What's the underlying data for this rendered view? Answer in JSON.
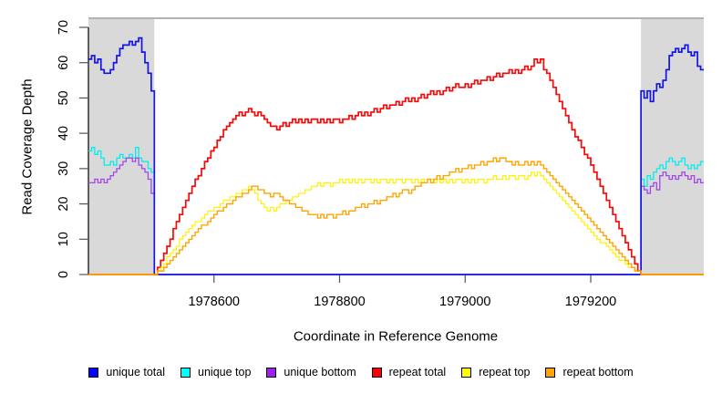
{
  "chart_data": {
    "type": "line",
    "title": "",
    "xlabel": "Coordinate in Reference Genome",
    "ylabel": "Read Coverage Depth",
    "xlim": [
      1978400,
      1979380
    ],
    "ylim": [
      0,
      72
    ],
    "x_ticks": [
      1978600,
      1978800,
      1979000,
      1979200
    ],
    "y_ticks": [
      0,
      10,
      20,
      30,
      40,
      50,
      60,
      70
    ],
    "grid": false,
    "interpolation": "step-after",
    "shaded_regions": {
      "color": "#D9D9D9",
      "regions": [
        [
          1978400,
          1978505
        ],
        [
          1979280,
          1979380
        ]
      ]
    },
    "series": [
      {
        "name": "unique top",
        "color": "#00EEEE",
        "width": 1.3,
        "segments": [
          {
            "x0": 1978400,
            "dx": 5,
            "values": [
              35,
              36,
              34,
              35,
              33,
              31,
              31,
              32,
              31,
              33,
              34,
              33,
              33,
              34,
              33,
              36,
              33,
              32,
              32,
              30,
              29
            ]
          },
          {
            "x0": 1979280,
            "dx": 5,
            "values": [
              27,
              25,
              28,
              27,
              29,
              30,
              31,
              30,
              32,
              33,
              32,
              31,
              32,
              33,
              31,
              30,
              31,
              30,
              31,
              32
            ]
          }
        ]
      },
      {
        "name": "unique bottom",
        "color": "#A347E8",
        "width": 1.3,
        "segments": [
          {
            "x0": 1978400,
            "dx": 5,
            "values": [
              26,
              26,
              27,
              26,
              27,
              26,
              27,
              28,
              29,
              30,
              31,
              32,
              33,
              33,
              32,
              33,
              31,
              30,
              29,
              27,
              23
            ]
          },
          {
            "x0": 1979280,
            "dx": 5,
            "values": [
              25,
              24,
              23,
              25,
              26,
              24,
              28,
              29,
              28,
              27,
              28,
              27,
              28,
              29,
              28,
              27,
              28,
              26,
              27,
              26
            ]
          }
        ]
      },
      {
        "name": "unique total",
        "color": "#1414E6",
        "width": 1.7,
        "segments": [
          {
            "x0": 1978400,
            "dx": 5,
            "values": [
              61,
              62,
              60,
              61,
              58,
              57,
              57,
              58,
              60,
              62,
              64,
              65,
              65,
              66,
              65,
              66,
              67,
              63,
              60,
              57,
              52
            ]
          },
          {
            "x0": 1979280,
            "dx": 5,
            "values": [
              52,
              50,
              52,
              49,
              52,
              54,
              53,
              55,
              58,
              62,
              63,
              64,
              63,
              64,
              65,
              63,
              62,
              63,
              59,
              58
            ]
          }
        ]
      },
      {
        "name": "repeat total",
        "color": "#F50A0A",
        "width": 1.7,
        "segments": [
          {
            "x0": 1978505,
            "dx": 5,
            "values": [
              0,
              2,
              4,
              6,
              8,
              10,
              13,
              15,
              17,
              19,
              21,
              23,
              25,
              27,
              28,
              30,
              32,
              33,
              35,
              36,
              38,
              39,
              41,
              42,
              43,
              44,
              45,
              46,
              45,
              46,
              47,
              46,
              45,
              46,
              45,
              44,
              43,
              42,
              42,
              41,
              42,
              43,
              42,
              43,
              44,
              43,
              44,
              43,
              44,
              43,
              44,
              44,
              43,
              44,
              43,
              44,
              43,
              44,
              44,
              43,
              44,
              44,
              45,
              44,
              45,
              46,
              45,
              46,
              45,
              46,
              47,
              46,
              47,
              48,
              47,
              48,
              48,
              49,
              48,
              49,
              50,
              49,
              50,
              49,
              50,
              51,
              50,
              51,
              52,
              51,
              52,
              51,
              52,
              53,
              52,
              53,
              54,
              53,
              53,
              54,
              53,
              54,
              55,
              54,
              55,
              55,
              56,
              55,
              56,
              57,
              56,
              57,
              57,
              58,
              57,
              58,
              57,
              58,
              59,
              58,
              59,
              61,
              60,
              61,
              58,
              57,
              55,
              53,
              51,
              49,
              47,
              45,
              43,
              41,
              39,
              38,
              36,
              34,
              33,
              31,
              29,
              27,
              25,
              23,
              21,
              19,
              17,
              15,
              13,
              11,
              9,
              7,
              5,
              3,
              1
            ]
          }
        ]
      },
      {
        "name": "repeat top",
        "color": "#FFF200",
        "width": 1.2,
        "segments": [
          {
            "x0": 1978505,
            "dx": 5,
            "values": [
              0,
              1,
              2,
              3,
              5,
              6,
              7,
              8,
              10,
              11,
              12,
              13,
              14,
              15,
              15,
              16,
              17,
              18,
              18,
              19,
              19,
              20,
              21,
              21,
              22,
              22,
              23,
              23,
              24,
              24,
              25,
              24,
              23,
              21,
              20,
              19,
              18,
              19,
              18,
              19,
              20,
              20,
              21,
              21,
              22,
              22,
              23,
              23,
              24,
              24,
              25,
              25,
              26,
              25,
              26,
              26,
              25,
              26,
              26,
              27,
              26,
              27,
              26,
              27,
              26,
              27,
              26,
              27,
              27,
              26,
              27,
              26,
              27,
              27,
              26,
              27,
              26,
              27,
              27,
              26,
              27,
              27,
              26,
              27,
              26,
              27,
              26,
              27,
              27,
              26,
              27,
              26,
              27,
              26,
              27,
              26,
              27,
              27,
              26,
              27,
              26,
              27,
              26,
              27,
              27,
              26,
              27,
              27,
              28,
              27,
              27,
              28,
              27,
              28,
              28,
              27,
              28,
              28,
              27,
              28,
              29,
              28,
              29,
              28,
              27,
              26,
              25,
              24,
              23,
              22,
              21,
              20,
              19,
              18,
              17,
              16,
              15,
              14,
              13,
              12,
              11,
              10,
              9,
              9,
              8,
              7,
              6,
              5,
              4,
              4,
              3,
              2,
              2,
              1,
              1
            ]
          }
        ]
      },
      {
        "name": "repeat bottom",
        "color": "#FFA500",
        "width": 1.4,
        "segments": [
          {
            "x0": 1978505,
            "dx": 5,
            "values": [
              0,
              1,
              1,
              2,
              3,
              4,
              5,
              6,
              7,
              8,
              9,
              10,
              11,
              12,
              13,
              14,
              14,
              15,
              16,
              17,
              18,
              18,
              19,
              20,
              20,
              21,
              22,
              22,
              23,
              23,
              24,
              25,
              25,
              24,
              24,
              23,
              23,
              22,
              23,
              23,
              22,
              21,
              21,
              20,
              20,
              19,
              19,
              18,
              18,
              17,
              17,
              17,
              16,
              17,
              16,
              17,
              17,
              16,
              17,
              17,
              18,
              17,
              18,
              18,
              19,
              19,
              20,
              19,
              20,
              20,
              21,
              20,
              21,
              21,
              22,
              22,
              23,
              22,
              23,
              24,
              24,
              23,
              24,
              25,
              25,
              26,
              26,
              27,
              26,
              27,
              28,
              27,
              28,
              28,
              29,
              29,
              30,
              29,
              30,
              30,
              31,
              30,
              31,
              31,
              32,
              31,
              32,
              32,
              33,
              32,
              33,
              33,
              32,
              32,
              31,
              32,
              31,
              31,
              32,
              31,
              32,
              31,
              32,
              31,
              30,
              29,
              28,
              27,
              26,
              25,
              24,
              23,
              22,
              21,
              20,
              19,
              18,
              17,
              16,
              15,
              14,
              13,
              12,
              11,
              10,
              9,
              8,
              7,
              6,
              5,
              4,
              3,
              2,
              1,
              1
            ]
          }
        ]
      }
    ],
    "legend": {
      "position": "bottom",
      "items": [
        {
          "label": "unique total",
          "color": "#0000FF"
        },
        {
          "label": "unique top",
          "color": "#00FFFF"
        },
        {
          "label": "unique bottom",
          "color": "#A020F0"
        },
        {
          "label": "repeat total",
          "color": "#FF0000"
        },
        {
          "label": "repeat top",
          "color": "#FFFF00"
        },
        {
          "label": "repeat bottom",
          "color": "#FFA500"
        }
      ]
    }
  }
}
